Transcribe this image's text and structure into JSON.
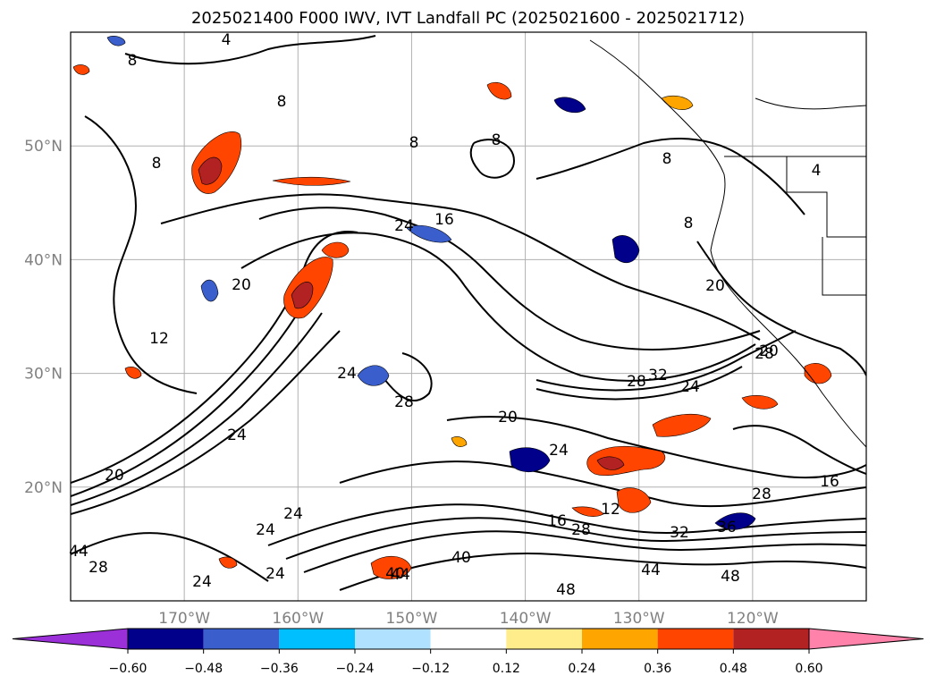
{
  "title": "2025021400 F000 IWV, IVT Landfall PC (2025021600 - 2025021712)",
  "map": {
    "lat_labels": [
      "50°N",
      "40°N",
      "30°N",
      "20°N"
    ],
    "lon_labels": [
      "170°W",
      "160°W",
      "150°W",
      "140°W",
      "130°W",
      "120°W"
    ],
    "lat_range": [
      10,
      60
    ],
    "lon_range": [
      -180,
      -110
    ],
    "gridlines": true,
    "contour_field": "IWV",
    "contour_labels": [
      "4",
      "8",
      "8",
      "8",
      "8",
      "8",
      "8",
      "4",
      "8",
      "12",
      "16",
      "24",
      "20",
      "20",
      "20",
      "24",
      "24",
      "28",
      "20",
      "24",
      "28",
      "32",
      "24",
      "20",
      "24",
      "24",
      "28",
      "28",
      "16",
      "12",
      "16",
      "28",
      "32",
      "36",
      "40",
      "44",
      "44",
      "48",
      "48",
      "40",
      "44",
      "24",
      "24",
      "28"
    ]
  },
  "colorbar": {
    "colors": [
      "#9b30d9",
      "#00008b",
      "#3a5fcd",
      "#00bfff",
      "#b0e2ff",
      "#ffffff",
      "#ffec8b",
      "#ffa500",
      "#ff4500",
      "#b22222",
      "#ff82ab"
    ],
    "ticks": [
      "−0.60",
      "−0.48",
      "−0.36",
      "−0.24",
      "−0.12",
      "0.12",
      "0.24",
      "0.36",
      "0.48",
      "0.60"
    ],
    "extend": "both"
  }
}
